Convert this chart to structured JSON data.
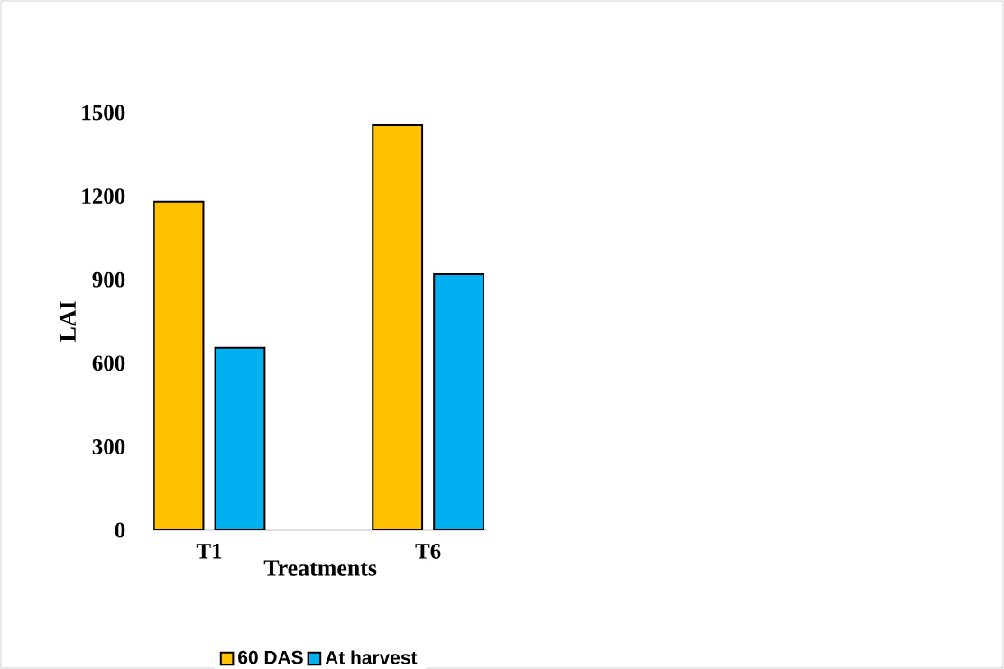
{
  "chart_data": {
    "type": "bar",
    "xlabel": "Treatments",
    "ylabel": "LAI",
    "categories": [
      "T1",
      "T6"
    ],
    "series": [
      {
        "name": "60 DAS",
        "color": "#ffc000",
        "values": [
          1180,
          1455
        ]
      },
      {
        "name": "At harvest",
        "color": "#00b0f0",
        "values": [
          655,
          920
        ]
      }
    ],
    "ylim": [
      0,
      1500
    ],
    "yticks": [
      0,
      300,
      600,
      900,
      1200,
      1500
    ],
    "grid": false,
    "legend": "bottom"
  }
}
